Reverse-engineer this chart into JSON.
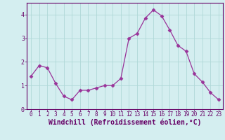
{
  "x": [
    0,
    1,
    2,
    3,
    4,
    5,
    6,
    7,
    8,
    9,
    10,
    11,
    12,
    13,
    14,
    15,
    16,
    17,
    18,
    19,
    20,
    21,
    22,
    23
  ],
  "y": [
    1.4,
    1.85,
    1.75,
    1.1,
    0.55,
    0.4,
    0.8,
    0.8,
    0.9,
    1.0,
    1.0,
    1.3,
    3.0,
    3.2,
    3.85,
    4.2,
    3.95,
    3.35,
    2.7,
    2.45,
    1.5,
    1.15,
    0.7,
    0.4
  ],
  "line_color": "#993399",
  "marker": "D",
  "marker_size": 2.5,
  "bg_color": "#d4eef0",
  "grid_color": "#b0d8d8",
  "xlabel": "Windchill (Refroidissement éolien,°C)",
  "xlabel_fontsize": 7,
  "tick_fontsize": 5.5,
  "ylim": [
    0,
    4.5
  ],
  "yticks": [
    0,
    1,
    2,
    3,
    4
  ],
  "xlim": [
    -0.5,
    23.5
  ],
  "xticks": [
    0,
    1,
    2,
    3,
    4,
    5,
    6,
    7,
    8,
    9,
    10,
    11,
    12,
    13,
    14,
    15,
    16,
    17,
    18,
    19,
    20,
    21,
    22,
    23
  ],
  "spine_color": "#660066",
  "text_color": "#660066"
}
